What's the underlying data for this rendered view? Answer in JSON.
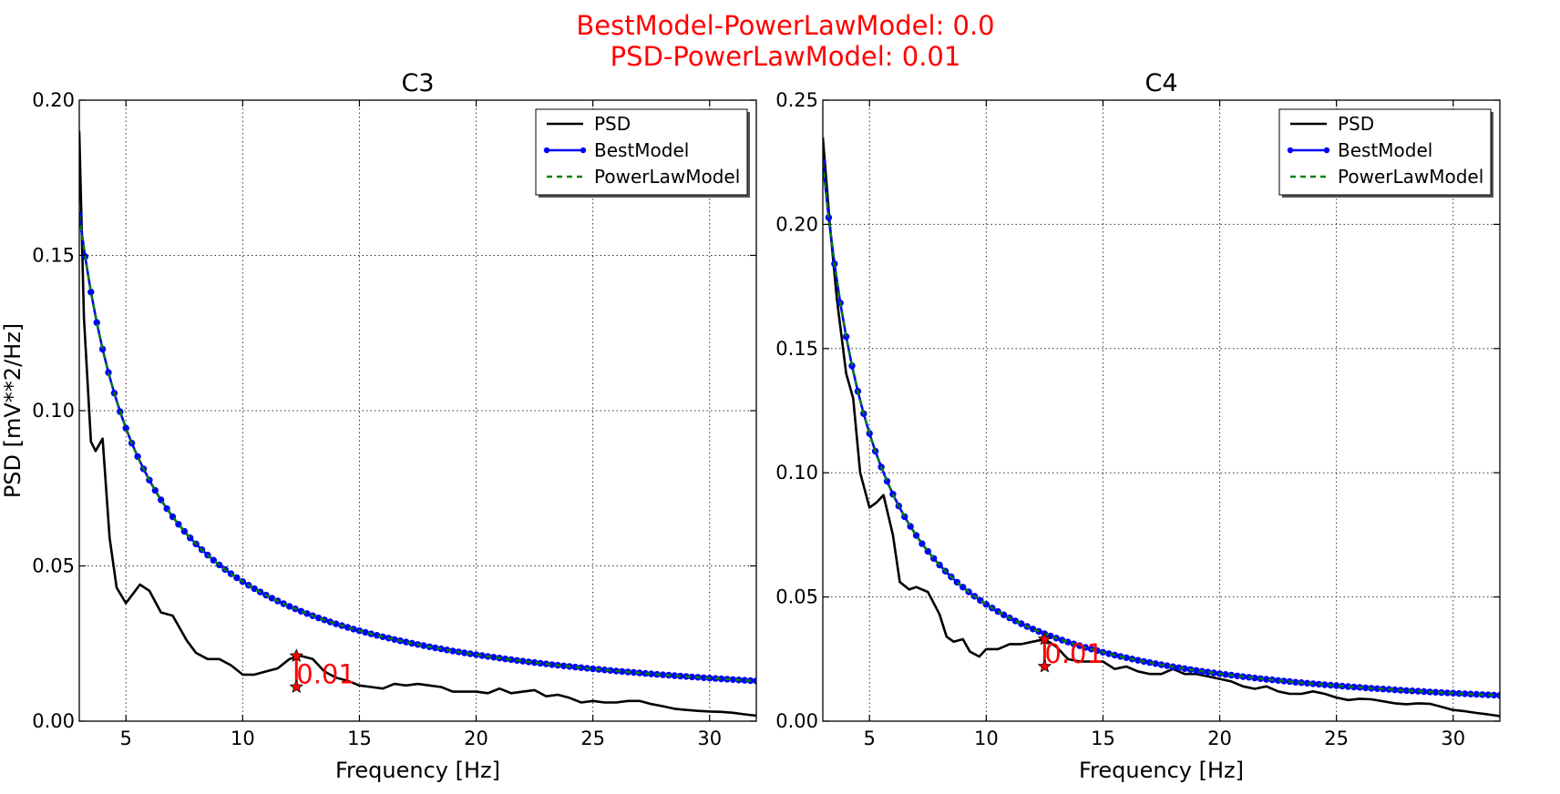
{
  "figure": {
    "suptitle_lines": [
      "BestModel-PowerLawModel: 0.0",
      "PSD-PowerLawModel: 0.01"
    ]
  },
  "legend": [
    "PSD",
    "BestModel",
    "PowerLawModel"
  ],
  "colors": {
    "psd": "#000000",
    "best": "#0000ff",
    "power": "#008000",
    "annot": "#ff0000"
  },
  "chart_data": [
    {
      "type": "line",
      "title": "C3",
      "xlabel": "Frequency [Hz]",
      "ylabel": "PSD [mV**2/Hz]",
      "xlim": [
        3,
        32
      ],
      "ylim": [
        0,
        0.2
      ],
      "xticks": [
        5,
        10,
        15,
        20,
        25,
        30
      ],
      "xtick_labels": [
        "5",
        "10",
        "15",
        "20",
        "25",
        "30"
      ],
      "yticks": [
        0,
        0.05,
        0.1,
        0.15,
        0.2
      ],
      "ytick_labels": [
        "0.00",
        "0.05",
        "0.10",
        "0.15",
        "0.20"
      ],
      "grid": true,
      "legend_position": "top-right",
      "power_law": {
        "a": 0.163,
        "b": 1.07,
        "x_start": 3.0,
        "x_step": 0.25
      },
      "series": [
        {
          "name": "PSD",
          "x": [
            3.0,
            3.2,
            3.5,
            3.7,
            4.0,
            4.3,
            4.6,
            5.0,
            5.3,
            5.6,
            6.0,
            6.5,
            7.0,
            7.3,
            7.6,
            8.0,
            8.5,
            9.0,
            9.5,
            10.0,
            10.5,
            11.0,
            11.5,
            12.0,
            12.5,
            13.0,
            13.5,
            14.0,
            14.5,
            15.0,
            15.5,
            16.0,
            16.5,
            17.0,
            17.5,
            18.0,
            18.5,
            19.0,
            19.5,
            20.0,
            20.5,
            21.0,
            21.5,
            22.0,
            22.5,
            23.0,
            23.5,
            24.0,
            24.5,
            25.0,
            25.5,
            26.0,
            26.5,
            27.0,
            27.5,
            28.0,
            28.5,
            29.0,
            29.5,
            30.0,
            30.5,
            31.0,
            31.5,
            32.0
          ],
          "y": [
            0.19,
            0.13,
            0.09,
            0.087,
            0.091,
            0.059,
            0.043,
            0.038,
            0.041,
            0.044,
            0.042,
            0.035,
            0.034,
            0.03,
            0.026,
            0.022,
            0.02,
            0.02,
            0.018,
            0.015,
            0.015,
            0.016,
            0.017,
            0.02,
            0.021,
            0.02,
            0.016,
            0.014,
            0.013,
            0.0115,
            0.011,
            0.0105,
            0.012,
            0.0115,
            0.012,
            0.0115,
            0.011,
            0.0095,
            0.0095,
            0.0095,
            0.009,
            0.0105,
            0.009,
            0.0095,
            0.01,
            0.008,
            0.0085,
            0.0075,
            0.006,
            0.0065,
            0.006,
            0.006,
            0.0065,
            0.0065,
            0.0055,
            0.0048,
            0.004,
            0.0036,
            0.0033,
            0.0031,
            0.003,
            0.0027,
            0.0022,
            0.0018
          ]
        },
        {
          "name": "BestModel",
          "from_power_law": true
        },
        {
          "name": "PowerLawModel",
          "from_power_law": true
        }
      ],
      "annotation": {
        "x": 12.3,
        "y_low": 0.011,
        "y_high": 0.021,
        "text": "0.01"
      }
    },
    {
      "type": "line",
      "title": "C4",
      "xlabel": "Frequency [Hz]",
      "ylabel": "",
      "xlim": [
        3,
        32
      ],
      "ylim": [
        0,
        0.25
      ],
      "xticks": [
        5,
        10,
        15,
        20,
        25,
        30
      ],
      "xtick_labels": [
        "5",
        "10",
        "15",
        "20",
        "25",
        "30"
      ],
      "yticks": [
        0,
        0.05,
        0.1,
        0.15,
        0.2,
        0.25
      ],
      "ytick_labels": [
        "0.00",
        "0.05",
        "0.10",
        "0.15",
        "0.20",
        "0.25"
      ],
      "grid": true,
      "legend_position": "top-right",
      "power_law": {
        "a": 0.9,
        "b": 1.3,
        "x_start": 3.0,
        "x_step": 0.25
      },
      "series": [
        {
          "name": "PSD",
          "x": [
            3.0,
            3.3,
            3.6,
            4.0,
            4.3,
            4.6,
            5.0,
            5.3,
            5.6,
            6.0,
            6.3,
            6.7,
            7.0,
            7.5,
            8.0,
            8.3,
            8.6,
            9.0,
            9.3,
            9.7,
            10.0,
            10.5,
            11.0,
            11.5,
            12.0,
            12.5,
            13.0,
            13.5,
            14.0,
            14.5,
            15.0,
            15.5,
            16.0,
            16.5,
            17.0,
            17.5,
            18.0,
            18.5,
            19.0,
            19.5,
            20.0,
            20.5,
            21.0,
            21.5,
            22.0,
            22.5,
            23.0,
            23.5,
            24.0,
            24.5,
            25.0,
            25.5,
            26.0,
            26.5,
            27.0,
            27.5,
            28.0,
            28.5,
            29.0,
            29.5,
            30.0,
            30.5,
            31.0,
            31.5,
            32.0
          ],
          "y": [
            0.235,
            0.2,
            0.17,
            0.14,
            0.13,
            0.1,
            0.086,
            0.088,
            0.091,
            0.075,
            0.056,
            0.053,
            0.054,
            0.052,
            0.043,
            0.034,
            0.032,
            0.033,
            0.028,
            0.026,
            0.029,
            0.029,
            0.031,
            0.031,
            0.032,
            0.033,
            0.03,
            0.025,
            0.024,
            0.024,
            0.024,
            0.021,
            0.022,
            0.02,
            0.019,
            0.019,
            0.021,
            0.019,
            0.019,
            0.018,
            0.017,
            0.016,
            0.014,
            0.013,
            0.014,
            0.012,
            0.011,
            0.011,
            0.012,
            0.011,
            0.0095,
            0.0085,
            0.009,
            0.0088,
            0.008,
            0.0072,
            0.0068,
            0.0072,
            0.007,
            0.0058,
            0.0045,
            0.004,
            0.0033,
            0.0027,
            0.002
          ]
        },
        {
          "name": "BestModel",
          "from_power_law": true
        },
        {
          "name": "PowerLawModel",
          "from_power_law": true
        }
      ],
      "annotation": {
        "x": 12.5,
        "y_low": 0.022,
        "y_high": 0.033,
        "text": "0.01"
      }
    }
  ]
}
